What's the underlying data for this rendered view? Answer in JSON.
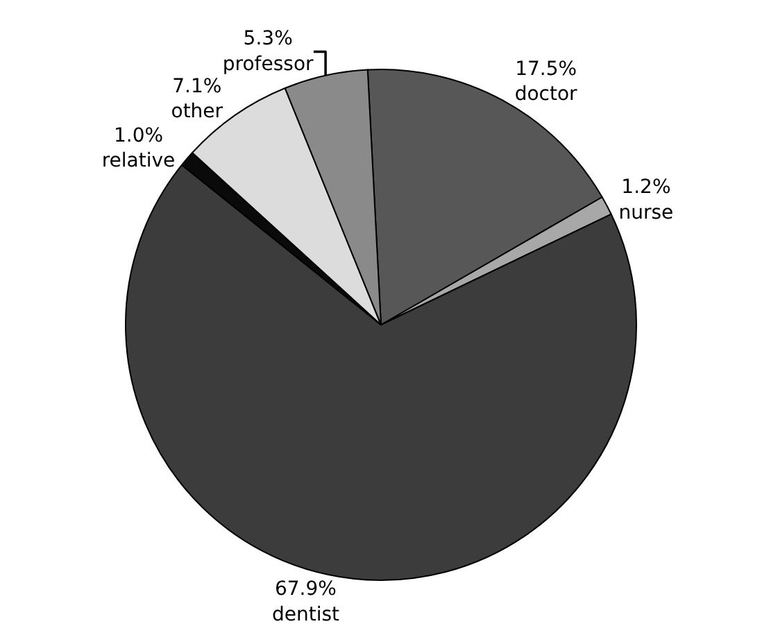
{
  "chart_data": {
    "type": "pie",
    "categories": [
      "doctor",
      "nurse",
      "dentist",
      "relative",
      "other",
      "professor"
    ],
    "values": [
      17.5,
      1.2,
      67.9,
      1.0,
      7.1,
      5.3
    ],
    "value_labels": [
      "17.5%",
      "1.2%",
      "67.9%",
      "1.0%",
      "7.1%",
      "5.3%"
    ],
    "colors": [
      "#575757",
      "#a8a8a8",
      "#3c3c3c",
      "#0a0a0a",
      "#dcdcdc",
      "#8a8a8a"
    ],
    "legend": false
  }
}
